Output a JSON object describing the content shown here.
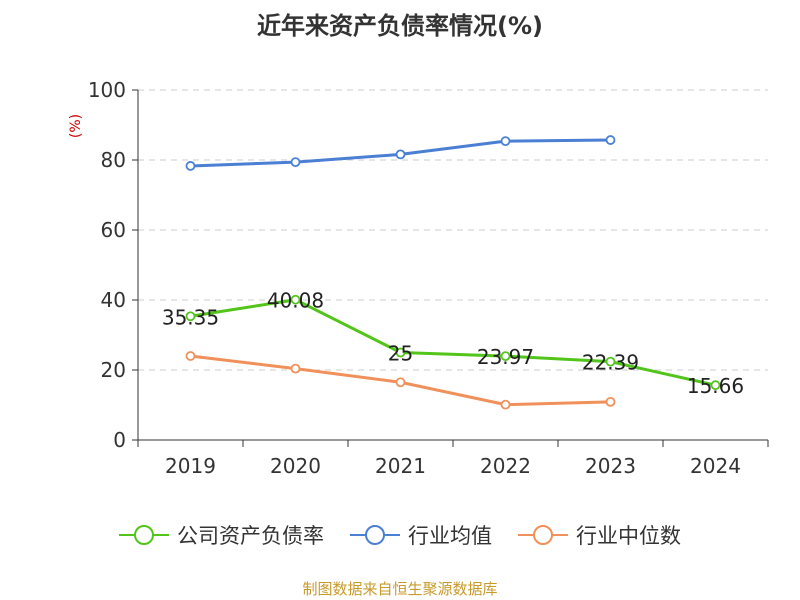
{
  "chart_data": {
    "type": "line",
    "title": "近年来资产负债率情况(%)",
    "ylabel": "(%)",
    "categories": [
      "2019",
      "2020",
      "2021",
      "2022",
      "2023",
      "2024"
    ],
    "ylim": [
      0,
      100
    ],
    "yticks": [
      "0",
      "20",
      "40",
      "60",
      "80",
      "100"
    ],
    "grid": true,
    "legend_position": "bottom",
    "series": [
      {
        "name": "公司资产负债率",
        "color": "#52c41a",
        "values": [
          35.35,
          40.08,
          25,
          23.97,
          22.39,
          15.66
        ],
        "labels": [
          "35.35",
          "40.08",
          "25",
          "23.97",
          "22.39",
          "15.66"
        ]
      },
      {
        "name": "行业均值",
        "color": "#4a7fd4",
        "values": [
          78.3,
          79.4,
          81.6,
          85.4,
          85.7,
          null
        ]
      },
      {
        "name": "行业中位数",
        "color": "#f0905a",
        "values": [
          24.0,
          20.4,
          16.5,
          10.1,
          10.9,
          null
        ]
      }
    ]
  },
  "source": "制图数据来自恒生聚源数据库"
}
